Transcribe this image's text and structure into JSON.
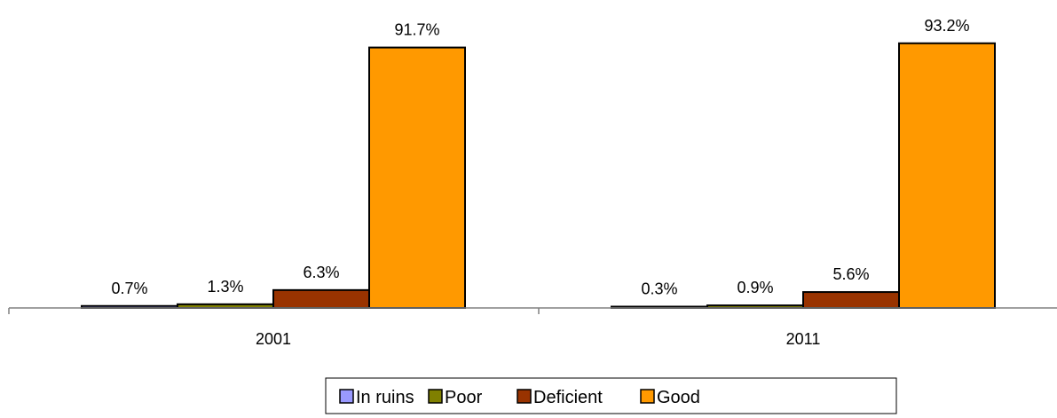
{
  "chart_data": {
    "type": "bar",
    "categories": [
      "2001",
      "2011"
    ],
    "series": [
      {
        "name": "In ruins",
        "values": [
          0.7,
          0.3
        ],
        "labels": [
          "0.7%",
          "0.3%"
        ],
        "color": "#9999ff"
      },
      {
        "name": "Poor",
        "values": [
          1.3,
          0.9
        ],
        "labels": [
          "1.3%",
          "0.9%"
        ],
        "color": "#808000"
      },
      {
        "name": "Deficient",
        "values": [
          6.3,
          5.6
        ],
        "labels": [
          "6.3%",
          "5.6%"
        ],
        "color": "#993300"
      },
      {
        "name": "Good",
        "values": [
          91.7,
          93.2
        ],
        "labels": [
          "91.7%",
          "93.2%"
        ],
        "color": "#ff9900"
      }
    ],
    "ylim": [
      0,
      100
    ],
    "grid": false,
    "legend": "bottom"
  }
}
